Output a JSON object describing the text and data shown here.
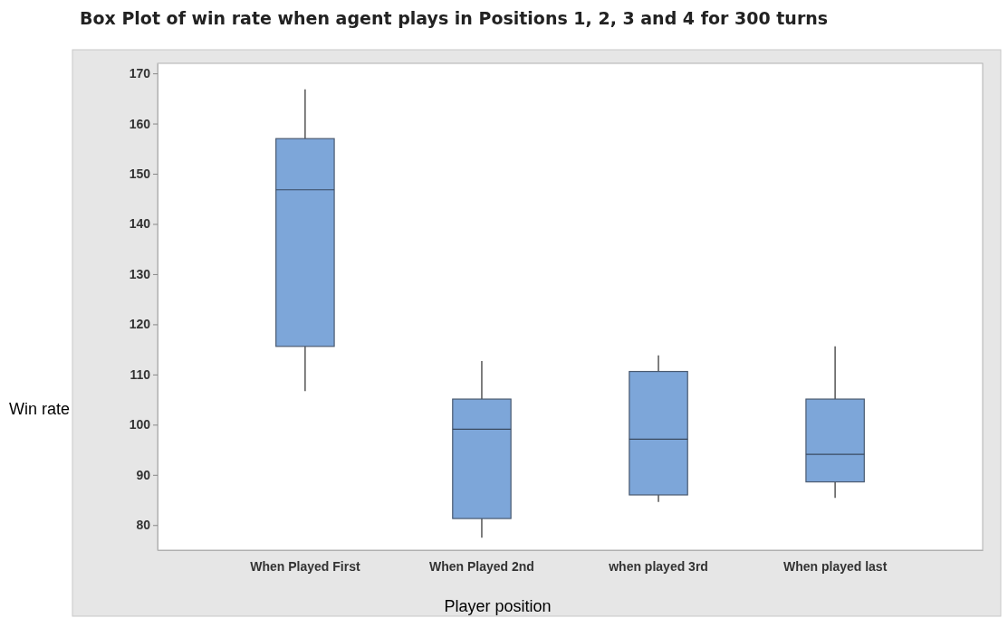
{
  "chart_data": {
    "type": "box",
    "title": "Box Plot of win rate when agent plays in Positions 1, 2, 3 and 4 for 300 turns",
    "xlabel": "Player position",
    "ylabel": "Win rate",
    "categories": [
      "When Played First",
      "When Played 2nd",
      "when played 3rd",
      "When played last"
    ],
    "ylim": [
      75,
      172
    ],
    "yticks": [
      80,
      90,
      100,
      110,
      120,
      130,
      140,
      150,
      160,
      170
    ],
    "series": [
      {
        "color": "#7da6d9",
        "boxes": [
          {
            "low": 106.7,
            "q1": 115.6,
            "median": 146.8,
            "q3": 157,
            "high": 166.8
          },
          {
            "low": 77.5,
            "q1": 81.3,
            "median": 99.1,
            "q3": 105.1,
            "high": 112.7
          },
          {
            "low": 84.6,
            "q1": 86,
            "median": 97.1,
            "q3": 110.6,
            "high": 113.8
          },
          {
            "low": 85.4,
            "q1": 88.6,
            "median": 94.1,
            "q3": 105.1,
            "high": 115.6
          }
        ]
      }
    ]
  }
}
